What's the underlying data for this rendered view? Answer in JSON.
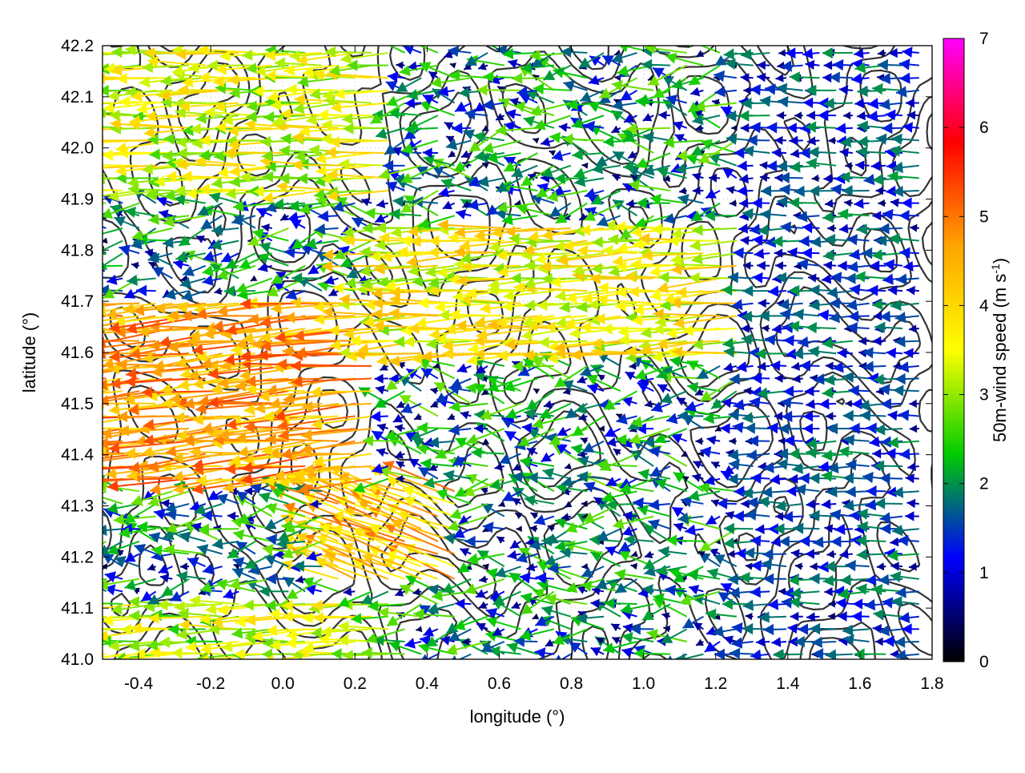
{
  "chart_data": {
    "type": "vector-field",
    "xlabel": "longitude (°)",
    "ylabel": "latitude (°)",
    "colorbar_label_main": "50m-wind speed (m s",
    "colorbar_label_sup": "-1",
    "colorbar_label_end": ")",
    "xlim": [
      -0.5,
      1.8
    ],
    "ylim": [
      41.0,
      42.2
    ],
    "colorbar_range": [
      0,
      7
    ],
    "x_ticks": [
      -0.4,
      -0.2,
      0.0,
      0.2,
      0.4,
      0.6,
      0.8,
      1.0,
      1.2,
      1.4,
      1.6,
      1.8
    ],
    "x_tick_labels": [
      "-0.4",
      "-0.2",
      "0.0",
      "0.2",
      "0.4",
      "0.6",
      "0.8",
      "1.0",
      "1.2",
      "1.4",
      "1.6",
      "1.8"
    ],
    "y_ticks": [
      41.0,
      41.1,
      41.2,
      41.3,
      41.4,
      41.5,
      41.6,
      41.7,
      41.8,
      41.9,
      42.0,
      42.1,
      42.2
    ],
    "y_tick_labels": [
      "41.0",
      "41.1",
      "41.2",
      "41.3",
      "41.4",
      "41.5",
      "41.6",
      "41.7",
      "41.8",
      "41.9",
      "42.0",
      "42.1",
      "42.2"
    ],
    "colorbar_ticks": [
      0,
      1,
      2,
      3,
      4,
      5,
      6,
      7
    ],
    "colorbar_tick_labels": [
      "0",
      "1",
      "2",
      "3",
      "4",
      "5",
      "6",
      "7"
    ],
    "colormap_stops": [
      "#000000",
      "#0000ff",
      "#00cc00",
      "#ffff00",
      "#ffa500",
      "#ff0000",
      "#ff00ff"
    ],
    "contour_color": "#333333",
    "grid": true,
    "wind_regions": [
      {
        "lon": [
          -0.5,
          0.25
        ],
        "lat": [
          41.35,
          41.7
        ],
        "speed": 4.6,
        "direction_deg": 185
      },
      {
        "lon": [
          -0.5,
          0.3
        ],
        "lat": [
          41.9,
          42.2
        ],
        "speed": 3.4,
        "direction_deg": 182
      },
      {
        "lon": [
          0.25,
          1.3
        ],
        "lat": [
          41.58,
          41.85
        ],
        "speed": 3.6,
        "direction_deg": 183
      },
      {
        "lon": [
          0.15,
          0.5
        ],
        "lat": [
          41.15,
          41.33
        ],
        "speed": 4.3,
        "direction_deg": 160
      },
      {
        "lon": [
          -0.5,
          0.3
        ],
        "lat": [
          41.0,
          41.12
        ],
        "speed": 3.2,
        "direction_deg": 182
      },
      {
        "lon": [
          1.3,
          1.8
        ],
        "lat": [
          41.0,
          42.2
        ],
        "speed": 1.3,
        "direction_deg": 180
      }
    ]
  }
}
